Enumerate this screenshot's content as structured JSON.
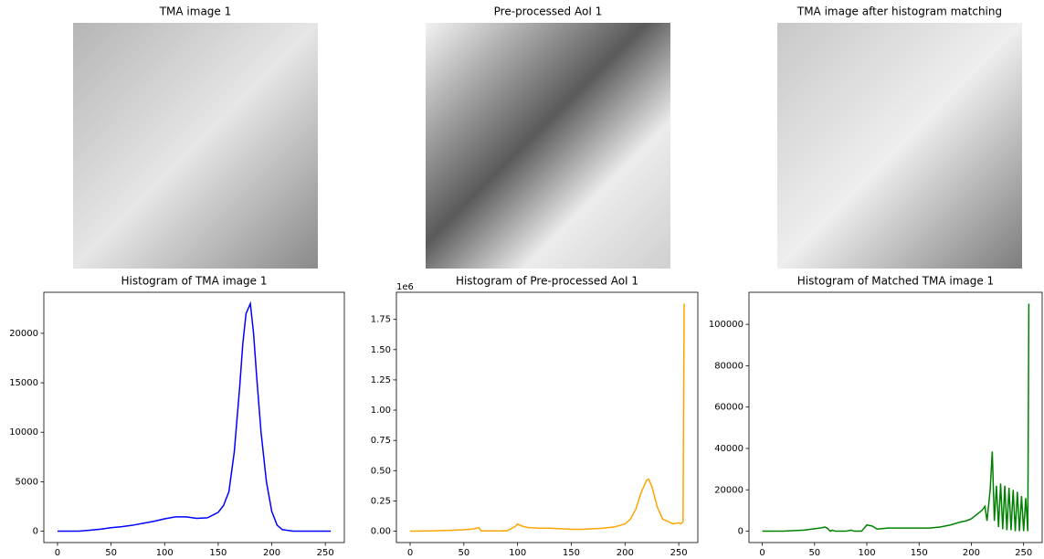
{
  "chart_data": [
    {
      "type": "image",
      "title": "TMA image 1"
    },
    {
      "type": "image",
      "title": "Pre-processed AoI 1"
    },
    {
      "type": "image",
      "title": "TMA image after histogram matching"
    },
    {
      "type": "line",
      "title": "Histogram of TMA image 1",
      "x": [
        0,
        10,
        20,
        30,
        40,
        50,
        60,
        70,
        80,
        90,
        100,
        110,
        120,
        130,
        140,
        150,
        155,
        160,
        165,
        170,
        173,
        176,
        178,
        180,
        183,
        186,
        190,
        195,
        200,
        205,
        210,
        220,
        230,
        240,
        255
      ],
      "series": [
        {
          "color": "#0000ff",
          "values": [
            0,
            0,
            0,
            100,
            200,
            350,
            450,
            600,
            800,
            1000,
            1250,
            1450,
            1450,
            1300,
            1350,
            1900,
            2600,
            4000,
            8000,
            14500,
            19000,
            22000,
            22500,
            23000,
            20000,
            15500,
            10000,
            5000,
            2000,
            600,
            150,
            0,
            0,
            0,
            0
          ]
        }
      ],
      "xlim": [
        -12.75,
        267.75
      ],
      "xticks": [
        0,
        50,
        100,
        150,
        200,
        250
      ],
      "ylim": [
        -1150,
        24150
      ],
      "yticks": [
        0,
        5000,
        10000,
        15000,
        20000
      ]
    },
    {
      "type": "line",
      "title": "Histogram of Pre-processed AoI 1",
      "offset_label": "1e6",
      "x": [
        0,
        20,
        40,
        50,
        60,
        64,
        66,
        70,
        80,
        90,
        98,
        100,
        102,
        105,
        110,
        120,
        130,
        140,
        150,
        160,
        170,
        180,
        190,
        200,
        205,
        210,
        215,
        220,
        222,
        225,
        230,
        235,
        240,
        245,
        250,
        252,
        254,
        255
      ],
      "series": [
        {
          "color": "#ffa500",
          "values": [
            0,
            0.002,
            0.008,
            0.012,
            0.02,
            0.03,
            0.002,
            0.002,
            0.002,
            0.002,
            0.04,
            0.06,
            0.05,
            0.04,
            0.03,
            0.025,
            0.025,
            0.02,
            0.015,
            0.015,
            0.02,
            0.025,
            0.035,
            0.06,
            0.1,
            0.18,
            0.32,
            0.42,
            0.43,
            0.37,
            0.2,
            0.1,
            0.08,
            0.06,
            0.07,
            0.06,
            0.08,
            1.88
          ]
        }
      ],
      "xlim": [
        -12.75,
        267.75
      ],
      "xticks": [
        0,
        50,
        100,
        150,
        200,
        250
      ],
      "ylim": [
        -0.094,
        1.974
      ],
      "yticks": [
        {
          "value": 0,
          "label": "0.00"
        },
        {
          "value": 0.25,
          "label": "0.25"
        },
        {
          "value": 0.5,
          "label": "0.50"
        },
        {
          "value": 0.75,
          "label": "0.75"
        },
        {
          "value": 1,
          "label": "1.00"
        },
        {
          "value": 1.25,
          "label": "1.25"
        },
        {
          "value": 1.5,
          "label": "1.50"
        },
        {
          "value": 1.75,
          "label": "1.75"
        }
      ]
    },
    {
      "type": "line",
      "title": "Histogram of Matched TMA image 1",
      "x": [
        0,
        20,
        40,
        55,
        60,
        62,
        65,
        67,
        70,
        80,
        85,
        88,
        95,
        100,
        105,
        110,
        120,
        140,
        160,
        170,
        180,
        190,
        195,
        200,
        205,
        210,
        213,
        215,
        218,
        220,
        222,
        224,
        226,
        228,
        230,
        232,
        234,
        236,
        238,
        240,
        242,
        244,
        246,
        248,
        250,
        252,
        254,
        255
      ],
      "series": [
        {
          "color": "#008000",
          "values": [
            0,
            0,
            500,
            1500,
            2000,
            1500,
            0,
            500,
            0,
            0,
            500,
            0,
            0,
            3000,
            2500,
            1000,
            1500,
            1500,
            1500,
            2000,
            3000,
            4500,
            5000,
            6000,
            8000,
            10000,
            12000,
            5000,
            20000,
            38500,
            5000,
            22000,
            2000,
            23000,
            1000,
            22000,
            500,
            21000,
            500,
            20000,
            0,
            19000,
            0,
            17000,
            0,
            16000,
            0,
            110000
          ]
        }
      ],
      "xlim": [
        -12.75,
        267.75
      ],
      "xticks": [
        0,
        50,
        100,
        150,
        200,
        250
      ],
      "ylim": [
        -5500,
        115500
      ],
      "yticks": [
        0,
        20000,
        40000,
        60000,
        80000,
        100000
      ]
    }
  ]
}
